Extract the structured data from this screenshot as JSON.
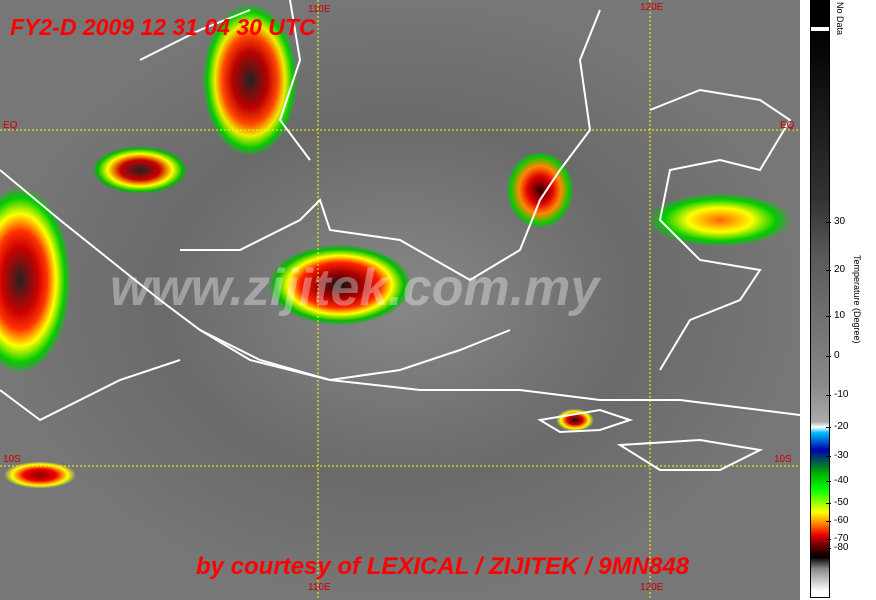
{
  "title": "FY2-D 2009 12 31 04 30 UTC",
  "credit": "by courtesy of LEXICAL / ZIJITEK / 9MN848",
  "watermark": "www.zijitek.com.my",
  "grid_labels": {
    "lon_110_top": "110E",
    "lon_120_top": "120E",
    "lon_110_bottom": "110E",
    "lon_120_bottom": "120E",
    "eq_left": "EQ",
    "eq_right": "EQ",
    "s10_left": "10S",
    "s10_right": "10S"
  },
  "legend": {
    "no_data": "No Data",
    "axis_title": "Temperature (Degree)",
    "ticks": [
      "30",
      "20",
      "10",
      "0",
      "-10",
      "-20",
      "-30",
      "-40",
      "-50",
      "-60",
      "-70",
      "-80"
    ]
  },
  "colors": {
    "text": "#ff0000",
    "coast": "#ffffff",
    "grid": "#ffff00"
  }
}
